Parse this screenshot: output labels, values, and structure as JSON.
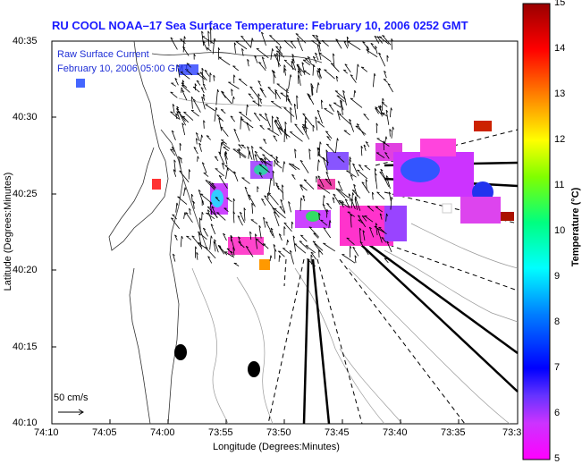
{
  "title": "RU COOL  NOAA–17  Sea Surface Temperature:  February 10, 2006 0252 GMT",
  "overlay": {
    "current_title": "Raw Surface Current",
    "current_time": "February 10, 2006 05:00 GMT",
    "scale_label": "50 cm/s"
  },
  "axes": {
    "xlabel": "Longitude (Degrees:Minutes)",
    "ylabel": "Latitude (Degrees:Minutes)",
    "x_ticks": [
      "74:10",
      "74:05",
      "74:00",
      "73:55",
      "73:50",
      "73:45",
      "73:40",
      "73:35",
      "73:3"
    ],
    "y_ticks": [
      "40:35",
      "40:30",
      "40:25",
      "40:20",
      "40:15",
      "40:10"
    ]
  },
  "colorbar": {
    "label": "Temperature (°C)",
    "ticks": [
      "15",
      "14",
      "13",
      "12",
      "11",
      "10",
      "9",
      "8",
      "7",
      "6",
      "5"
    ],
    "range": [
      5,
      15
    ]
  },
  "colors": {
    "title": "#1a1aff",
    "overlay_text": "#1f2fd6"
  }
}
